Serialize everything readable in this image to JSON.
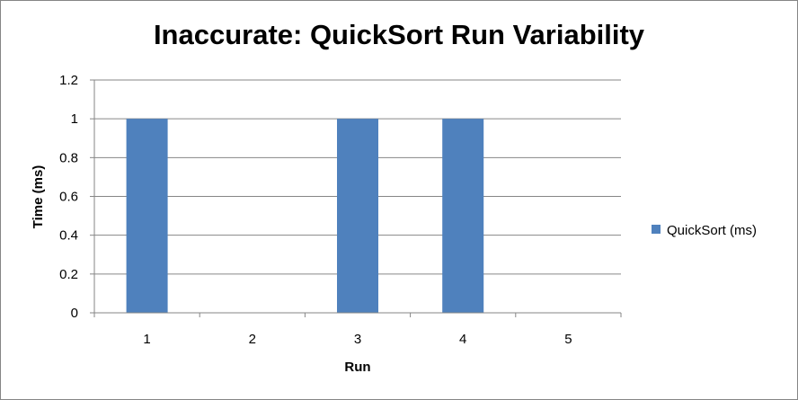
{
  "chart_data": {
    "type": "bar",
    "title": "Inaccurate: QuickSort Run Variability",
    "xlabel": "Run",
    "ylabel": "Time (ms)",
    "categories": [
      "1",
      "2",
      "3",
      "4",
      "5"
    ],
    "series": [
      {
        "name": "QuickSort (ms)",
        "values": [
          1,
          0,
          1,
          1,
          0
        ],
        "color": "#4F81BD"
      }
    ],
    "ylim": [
      0,
      1.2
    ],
    "yticks": [
      "0",
      "0.2",
      "0.4",
      "0.6",
      "0.8",
      "1",
      "1.2"
    ],
    "grid": true,
    "legend": "right"
  }
}
